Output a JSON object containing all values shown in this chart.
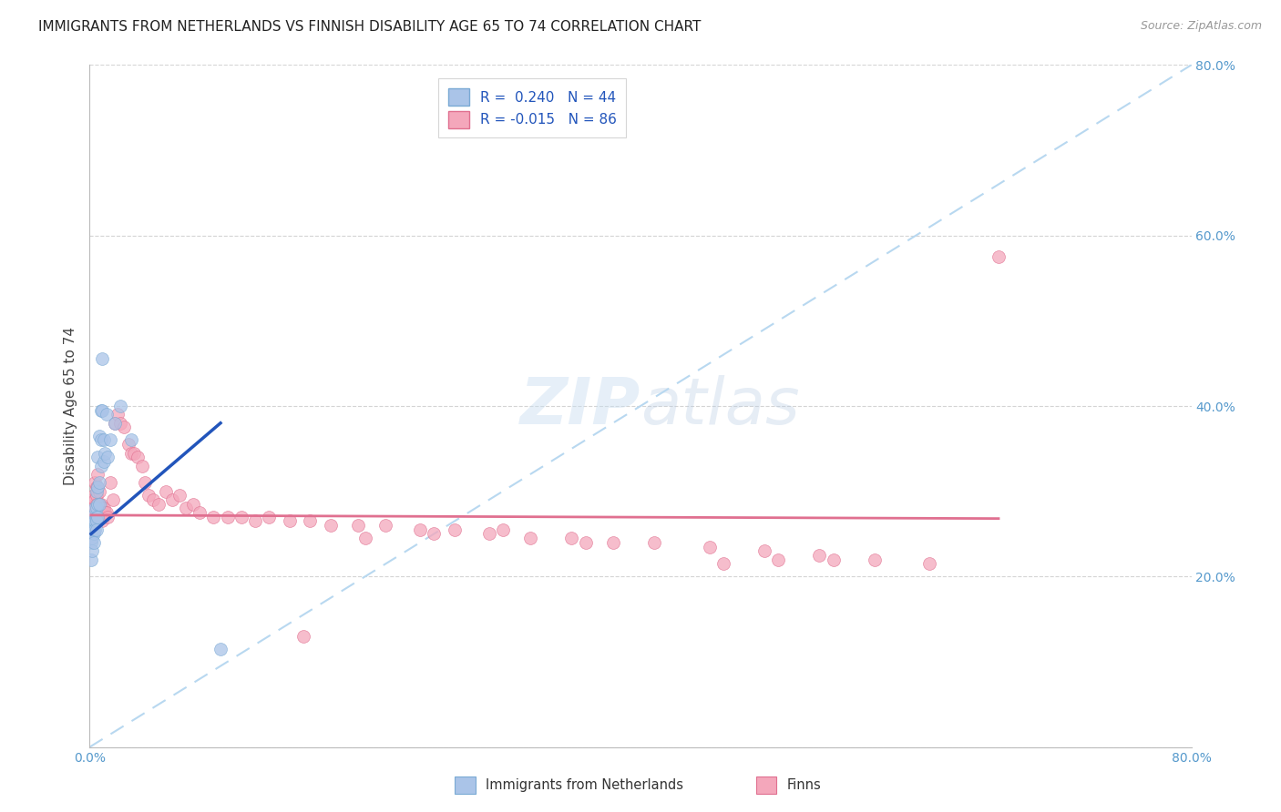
{
  "title": "IMMIGRANTS FROM NETHERLANDS VS FINNISH DISABILITY AGE 65 TO 74 CORRELATION CHART",
  "source": "Source: ZipAtlas.com",
  "ylabel": "Disability Age 65 to 74",
  "xlim": [
    0.0,
    0.8
  ],
  "ylim": [
    0.0,
    0.8
  ],
  "ytick_positions": [
    0.0,
    0.2,
    0.4,
    0.6,
    0.8
  ],
  "ytick_labels": [
    "",
    "20.0%",
    "40.0%",
    "60.0%",
    "80.0%"
  ],
  "xtick_positions": [
    0.0,
    0.1,
    0.2,
    0.3,
    0.4,
    0.5,
    0.6,
    0.7,
    0.8
  ],
  "xtick_labels": [
    "0.0%",
    "",
    "",
    "",
    "",
    "",
    "",
    "",
    "80.0%"
  ],
  "watermark": "ZIPAtlas",
  "nl_color": "#aac4e8",
  "nl_edge_color": "#7aaad4",
  "nl_line_color": "#2255bb",
  "fi_color": "#f4a7bb",
  "fi_edge_color": "#e07090",
  "fi_line_color": "#e07090",
  "diag_color": "#b8d8f0",
  "nl_scatter_x": [
    0.001,
    0.001,
    0.001,
    0.001,
    0.001,
    0.002,
    0.002,
    0.002,
    0.002,
    0.003,
    0.003,
    0.003,
    0.003,
    0.003,
    0.004,
    0.004,
    0.004,
    0.005,
    0.005,
    0.005,
    0.005,
    0.005,
    0.006,
    0.006,
    0.006,
    0.006,
    0.007,
    0.007,
    0.007,
    0.008,
    0.008,
    0.008,
    0.009,
    0.009,
    0.01,
    0.01,
    0.011,
    0.012,
    0.013,
    0.015,
    0.018,
    0.022,
    0.03,
    0.095
  ],
  "nl_scatter_y": [
    0.27,
    0.26,
    0.255,
    0.24,
    0.22,
    0.26,
    0.255,
    0.245,
    0.23,
    0.265,
    0.26,
    0.255,
    0.25,
    0.24,
    0.28,
    0.265,
    0.255,
    0.3,
    0.28,
    0.27,
    0.265,
    0.255,
    0.34,
    0.305,
    0.285,
    0.27,
    0.365,
    0.31,
    0.285,
    0.395,
    0.36,
    0.33,
    0.455,
    0.395,
    0.36,
    0.335,
    0.345,
    0.39,
    0.34,
    0.36,
    0.38,
    0.4,
    0.36,
    0.115
  ],
  "fi_scatter_x": [
    0.001,
    0.001,
    0.001,
    0.002,
    0.002,
    0.002,
    0.002,
    0.002,
    0.003,
    0.003,
    0.003,
    0.003,
    0.004,
    0.004,
    0.004,
    0.004,
    0.005,
    0.005,
    0.005,
    0.005,
    0.006,
    0.006,
    0.006,
    0.007,
    0.007,
    0.007,
    0.008,
    0.008,
    0.009,
    0.009,
    0.01,
    0.011,
    0.012,
    0.013,
    0.015,
    0.017,
    0.018,
    0.02,
    0.022,
    0.025,
    0.028,
    0.03,
    0.032,
    0.035,
    0.038,
    0.04,
    0.043,
    0.046,
    0.05,
    0.055,
    0.06,
    0.065,
    0.07,
    0.075,
    0.08,
    0.09,
    0.1,
    0.11,
    0.12,
    0.13,
    0.145,
    0.16,
    0.175,
    0.195,
    0.215,
    0.24,
    0.265,
    0.29,
    0.32,
    0.35,
    0.38,
    0.41,
    0.45,
    0.49,
    0.53,
    0.57,
    0.61,
    0.54,
    0.5,
    0.46,
    0.36,
    0.3,
    0.25,
    0.2,
    0.155,
    0.66
  ],
  "fi_scatter_y": [
    0.27,
    0.265,
    0.255,
    0.29,
    0.28,
    0.27,
    0.265,
    0.255,
    0.295,
    0.28,
    0.27,
    0.26,
    0.31,
    0.29,
    0.275,
    0.265,
    0.305,
    0.295,
    0.285,
    0.27,
    0.32,
    0.305,
    0.28,
    0.3,
    0.285,
    0.27,
    0.285,
    0.27,
    0.28,
    0.265,
    0.28,
    0.275,
    0.275,
    0.27,
    0.31,
    0.29,
    0.38,
    0.39,
    0.38,
    0.375,
    0.355,
    0.345,
    0.345,
    0.34,
    0.33,
    0.31,
    0.295,
    0.29,
    0.285,
    0.3,
    0.29,
    0.295,
    0.28,
    0.285,
    0.275,
    0.27,
    0.27,
    0.27,
    0.265,
    0.27,
    0.265,
    0.265,
    0.26,
    0.26,
    0.26,
    0.255,
    0.255,
    0.25,
    0.245,
    0.245,
    0.24,
    0.24,
    0.235,
    0.23,
    0.225,
    0.22,
    0.215,
    0.22,
    0.22,
    0.215,
    0.24,
    0.255,
    0.25,
    0.245,
    0.13,
    0.575
  ],
  "nl_trend_x": [
    0.001,
    0.095
  ],
  "nl_trend_y": [
    0.25,
    0.38
  ],
  "fi_trend_x": [
    0.001,
    0.66
  ],
  "fi_trend_y": [
    0.272,
    0.268
  ]
}
